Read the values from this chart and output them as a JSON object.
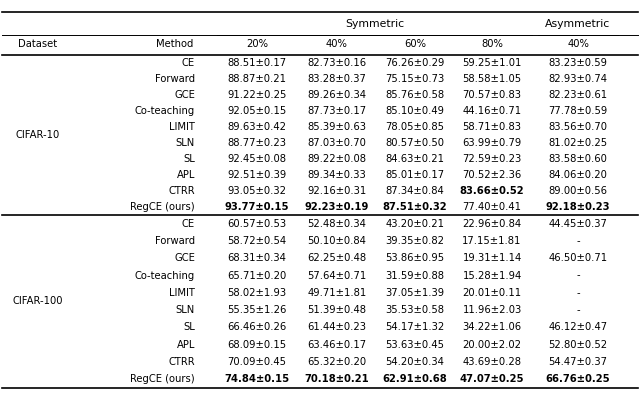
{
  "cifar10_rows": [
    [
      "CE",
      "88.51±0.17",
      "82.73±0.16",
      "76.26±0.29",
      "59.25±1.01",
      "83.23±0.59"
    ],
    [
      "Forward",
      "88.87±0.21",
      "83.28±0.37",
      "75.15±0.73",
      "58.58±1.05",
      "82.93±0.74"
    ],
    [
      "GCE",
      "91.22±0.25",
      "89.26±0.34",
      "85.76±0.58",
      "70.57±0.83",
      "82.23±0.61"
    ],
    [
      "Co-teaching",
      "92.05±0.15",
      "87.73±0.17",
      "85.10±0.49",
      "44.16±0.71",
      "77.78±0.59"
    ],
    [
      "LIMIT",
      "89.63±0.42",
      "85.39±0.63",
      "78.05±0.85",
      "58.71±0.83",
      "83.56±0.70"
    ],
    [
      "SLN",
      "88.77±0.23",
      "87.03±0.70",
      "80.57±0.50",
      "63.99±0.79",
      "81.02±0.25"
    ],
    [
      "SL",
      "92.45±0.08",
      "89.22±0.08",
      "84.63±0.21",
      "72.59±0.23",
      "83.58±0.60"
    ],
    [
      "APL",
      "92.51±0.39",
      "89.34±0.33",
      "85.01±0.17",
      "70.52±2.36",
      "84.06±0.20"
    ],
    [
      "CTRR",
      "93.05±0.32",
      "92.16±0.31",
      "87.34±0.84",
      "83.66±0.52",
      "89.00±0.56"
    ],
    [
      "RegCE (ours)",
      "93.77±0.15",
      "92.23±0.19",
      "87.51±0.32",
      "77.40±0.41",
      "92.18±0.23"
    ]
  ],
  "cifar10_bold": [
    [
      false,
      false,
      false,
      false,
      false
    ],
    [
      false,
      false,
      false,
      false,
      false
    ],
    [
      false,
      false,
      false,
      false,
      false
    ],
    [
      false,
      false,
      false,
      false,
      false
    ],
    [
      false,
      false,
      false,
      false,
      false
    ],
    [
      false,
      false,
      false,
      false,
      false
    ],
    [
      false,
      false,
      false,
      false,
      false
    ],
    [
      false,
      false,
      false,
      false,
      false
    ],
    [
      false,
      false,
      false,
      true,
      false
    ],
    [
      true,
      true,
      true,
      false,
      true
    ]
  ],
  "cifar100_rows": [
    [
      "CE",
      "60.57±0.53",
      "52.48±0.34",
      "43.20±0.21",
      "22.96±0.84",
      "44.45±0.37"
    ],
    [
      "Forward",
      "58.72±0.54",
      "50.10±0.84",
      "39.35±0.82",
      "17.15±1.81",
      "-"
    ],
    [
      "GCE",
      "68.31±0.34",
      "62.25±0.48",
      "53.86±0.95",
      "19.31±1.14",
      "46.50±0.71"
    ],
    [
      "Co-teaching",
      "65.71±0.20",
      "57.64±0.71",
      "31.59±0.88",
      "15.28±1.94",
      "-"
    ],
    [
      "LIMIT",
      "58.02±1.93",
      "49.71±1.81",
      "37.05±1.39",
      "20.01±0.11",
      "-"
    ],
    [
      "SLN",
      "55.35±1.26",
      "51.39±0.48",
      "35.53±0.58",
      "11.96±2.03",
      "-"
    ],
    [
      "SL",
      "66.46±0.26",
      "61.44±0.23",
      "54.17±1.32",
      "34.22±1.06",
      "46.12±0.47"
    ],
    [
      "APL",
      "68.09±0.15",
      "63.46±0.17",
      "53.63±0.45",
      "20.00±2.02",
      "52.80±0.52"
    ],
    [
      "CTRR",
      "70.09±0.45",
      "65.32±0.20",
      "54.20±0.34",
      "43.69±0.28",
      "54.47±0.37"
    ],
    [
      "RegCE (ours)",
      "74.84±0.15",
      "70.18±0.21",
      "62.91±0.68",
      "47.07±0.25",
      "66.76±0.25"
    ]
  ],
  "cifar100_bold": [
    [
      false,
      false,
      false,
      false,
      false
    ],
    [
      false,
      false,
      false,
      false,
      false
    ],
    [
      false,
      false,
      false,
      false,
      false
    ],
    [
      false,
      false,
      false,
      false,
      false
    ],
    [
      false,
      false,
      false,
      false,
      false
    ],
    [
      false,
      false,
      false,
      false,
      false
    ],
    [
      false,
      false,
      false,
      false,
      false
    ],
    [
      false,
      false,
      false,
      false,
      false
    ],
    [
      false,
      false,
      false,
      false,
      false
    ],
    [
      true,
      true,
      true,
      true,
      true
    ]
  ],
  "bg_color": "#ffffff",
  "text_color": "#000000",
  "line_color": "#000000",
  "fontsize": 7.2,
  "header_fontsize": 7.8
}
